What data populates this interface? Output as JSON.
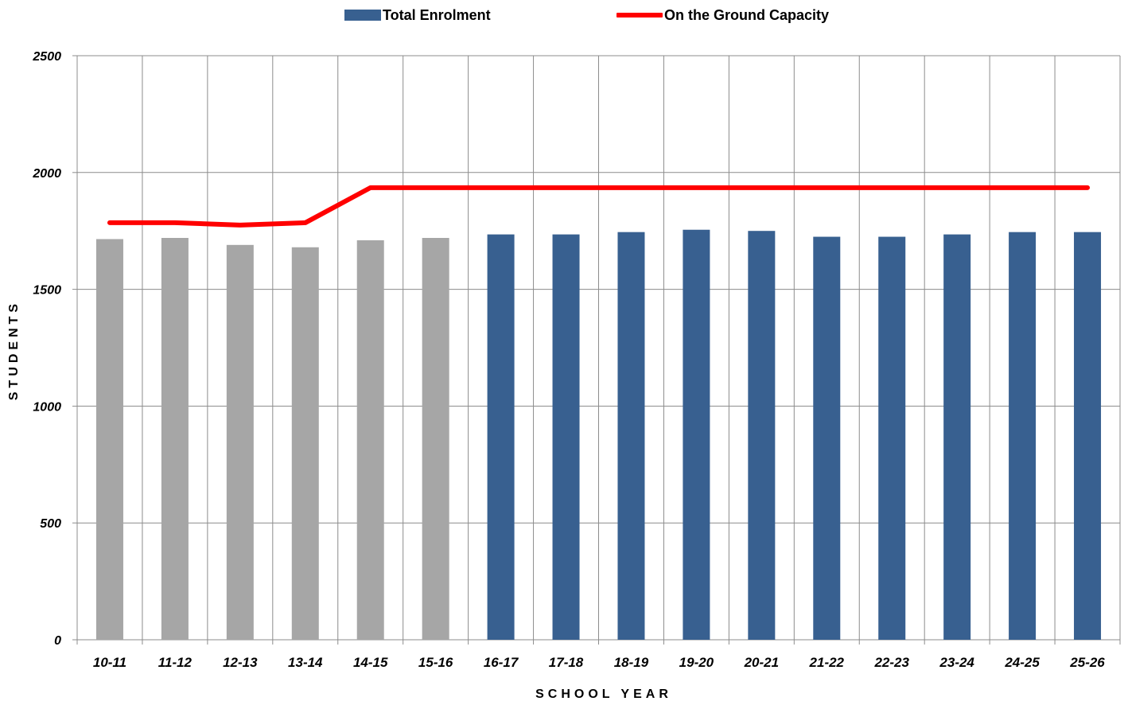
{
  "chart_data": {
    "type": "bar",
    "title": "",
    "xlabel": "SCHOOL YEAR",
    "ylabel": "STUDENTS",
    "ylim": [
      0,
      2500
    ],
    "yticks": [
      "0",
      "500",
      "1000",
      "1500",
      "2000",
      "2500"
    ],
    "grid": true,
    "legend_position": "top",
    "categories": [
      "10-11",
      "11-12",
      "12-13",
      "13-14",
      "14-15",
      "15-16",
      "16-17",
      "17-18",
      "18-19",
      "19-20",
      "20-21",
      "21-22",
      "22-23",
      "23-24",
      "24-25",
      "25-26"
    ],
    "series": [
      {
        "name": "Total Enrolment",
        "type": "bar",
        "color": "#386090",
        "historical_color": "#A6A6A6",
        "historical_count": 6,
        "values": [
          1715,
          1720,
          1690,
          1680,
          1710,
          1720,
          1735,
          1735,
          1745,
          1755,
          1750,
          1725,
          1725,
          1735,
          1745,
          1745
        ]
      },
      {
        "name": "On the Ground Capacity",
        "type": "line",
        "color": "#FF0000",
        "values": [
          1785,
          1785,
          1775,
          1785,
          1935,
          1935,
          1935,
          1935,
          1935,
          1935,
          1935,
          1935,
          1935,
          1935,
          1935,
          1935
        ]
      }
    ]
  }
}
